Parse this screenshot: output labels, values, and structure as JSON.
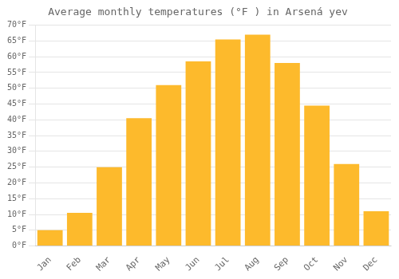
{
  "chart_data": {
    "type": "bar",
    "title": "Average monthly temperatures (°F ) in Arsená yev",
    "categories": [
      "Jan",
      "Feb",
      "Mar",
      "Apr",
      "May",
      "Jun",
      "Jul",
      "Aug",
      "Sep",
      "Oct",
      "Nov",
      "Dec"
    ],
    "values": [
      5,
      10.5,
      25,
      40.5,
      51,
      58.5,
      65.5,
      67,
      58,
      44.5,
      26,
      11
    ],
    "color": "#FDBA2C",
    "ylim": [
      0,
      70
    ],
    "yticks": [
      {
        "value": 0,
        "label": "0°F"
      },
      {
        "value": 5,
        "label": "5°F"
      },
      {
        "value": 10,
        "label": "10°F"
      },
      {
        "value": 15,
        "label": "15°F"
      },
      {
        "value": 20,
        "label": "20°F"
      },
      {
        "value": 25,
        "label": "25°F"
      },
      {
        "value": 30,
        "label": "30°F"
      },
      {
        "value": 35,
        "label": "35°F"
      },
      {
        "value": 40,
        "label": "40°F"
      },
      {
        "value": 45,
        "label": "45°F"
      },
      {
        "value": 50,
        "label": "50°F"
      },
      {
        "value": 55,
        "label": "55°F"
      },
      {
        "value": 60,
        "label": "60°F"
      },
      {
        "value": 65,
        "label": "65°F"
      },
      {
        "value": 70,
        "label": "70°F"
      }
    ],
    "grid": true
  }
}
